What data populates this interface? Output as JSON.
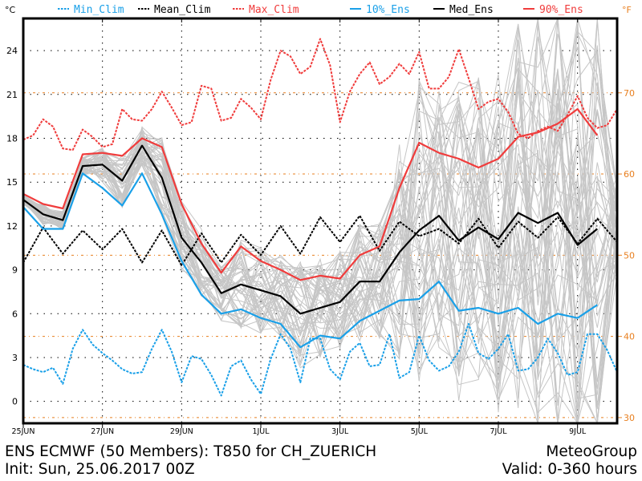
{
  "chart_data": {
    "type": "line",
    "title": "ENS ECMWF (50 Members): T850 for CH_ZUERICH",
    "subtitle": "Init: Sun, 25.06.2017 00Z",
    "credit": "MeteoGroup",
    "valid": "Valid: 0-360 hours",
    "ylabel": "°C",
    "ylabel_right": "°F",
    "xlabel": "",
    "xunit": "hours since init",
    "ylim": [
      -1.5,
      26.2
    ],
    "xlim": [
      0,
      360
    ],
    "grid": true,
    "legend_position": "top",
    "yticks": [
      0,
      3,
      6,
      9,
      12,
      15,
      18,
      21,
      24
    ],
    "yticks_right": [
      30,
      40,
      50,
      60,
      70
    ],
    "xticks": [
      {
        "hour": 0,
        "label": "25JUN"
      },
      {
        "hour": 48,
        "label": "27JUN"
      },
      {
        "hour": 96,
        "label": "29JUN"
      },
      {
        "hour": 144,
        "label": "1JUL"
      },
      {
        "hour": 192,
        "label": "3JUL"
      },
      {
        "hour": 240,
        "label": "5JUL"
      },
      {
        "hour": 288,
        "label": "7JUL"
      },
      {
        "hour": 336,
        "label": "9JUL"
      }
    ],
    "legend": [
      {
        "name": "Min_Clim",
        "color": "#1aa0e8",
        "style": "dashed"
      },
      {
        "name": "Mean_Clim",
        "color": "#000000",
        "style": "dashed"
      },
      {
        "name": "Max_Clim",
        "color": "#f03c3c",
        "style": "dashed"
      },
      {
        "name": "10%_Ens",
        "color": "#1aa0e8",
        "style": "solid"
      },
      {
        "name": "Med_Ens",
        "color": "#000000",
        "style": "solid"
      },
      {
        "name": "90%_Ens",
        "color": "#f03c3c",
        "style": "solid"
      }
    ],
    "series": [
      {
        "name": "Max_Clim",
        "hours": [
          0,
          6,
          12,
          18,
          24,
          30,
          36,
          42,
          48,
          54,
          60,
          66,
          72,
          78,
          84,
          90,
          96,
          102,
          108,
          114,
          120,
          126,
          132,
          138,
          144,
          150,
          156,
          162,
          168,
          174,
          180,
          186,
          192,
          198,
          204,
          210,
          216,
          222,
          228,
          234,
          240,
          246,
          252,
          258,
          264,
          270,
          276,
          282,
          288,
          294,
          300,
          306,
          312,
          318,
          324,
          330,
          336,
          342,
          348,
          354,
          360
        ],
        "values": [
          17.9,
          18.2,
          19.3,
          18.8,
          17.3,
          17.2,
          18.6,
          18.1,
          17.4,
          17.6,
          20.0,
          19.3,
          19.2,
          20.0,
          21.2,
          20.1,
          18.9,
          19.1,
          21.6,
          21.4,
          19.2,
          19.4,
          20.7,
          20.1,
          19.3,
          22.0,
          24.0,
          23.6,
          22.4,
          22.9,
          24.8,
          23.0,
          19.1,
          21.2,
          22.4,
          23.2,
          21.7,
          22.2,
          23.1,
          22.4,
          23.9,
          21.4,
          21.4,
          22.2,
          24.1,
          22.1,
          20.0,
          20.5,
          20.7,
          19.8,
          18.3,
          18.0,
          18.5,
          18.8,
          18.5,
          19.6,
          20.9,
          19.4,
          18.7,
          18.9,
          20.0
        ]
      },
      {
        "name": "Mean_Clim",
        "hours": [
          0,
          12,
          24,
          36,
          48,
          60,
          72,
          84,
          96,
          108,
          120,
          132,
          144,
          156,
          168,
          180,
          192,
          204,
          216,
          228,
          240,
          252,
          264,
          276,
          288,
          300,
          312,
          324,
          336,
          348,
          360
        ],
        "values": [
          9.5,
          11.9,
          10.1,
          11.7,
          10.4,
          11.8,
          9.5,
          11.7,
          9.3,
          11.5,
          9.5,
          11.4,
          10.0,
          12.0,
          10.1,
          12.6,
          10.9,
          12.7,
          10.3,
          12.3,
          11.3,
          11.8,
          10.8,
          12.5,
          10.5,
          12.3,
          11.2,
          12.6,
          10.8,
          12.5,
          10.9
        ]
      },
      {
        "name": "Min_Clim",
        "hours": [
          0,
          6,
          12,
          18,
          24,
          30,
          36,
          42,
          48,
          54,
          60,
          66,
          72,
          78,
          84,
          90,
          96,
          102,
          108,
          114,
          120,
          126,
          132,
          138,
          144,
          150,
          156,
          162,
          168,
          174,
          180,
          186,
          192,
          198,
          204,
          210,
          216,
          222,
          228,
          234,
          240,
          246,
          252,
          258,
          264,
          270,
          276,
          282,
          288,
          294,
          300,
          306,
          312,
          318,
          324,
          330,
          336,
          342,
          348,
          354,
          360
        ],
        "values": [
          2.5,
          2.2,
          2.0,
          2.3,
          1.2,
          3.6,
          4.9,
          3.9,
          3.3,
          2.8,
          2.2,
          1.9,
          2.0,
          3.6,
          4.9,
          3.4,
          1.3,
          3.1,
          2.9,
          1.8,
          0.4,
          2.4,
          2.8,
          1.5,
          0.5,
          2.9,
          4.6,
          3.6,
          1.3,
          4.3,
          4.3,
          2.2,
          1.5,
          3.4,
          4.0,
          2.4,
          2.5,
          4.6,
          1.6,
          2.0,
          4.5,
          2.8,
          2.1,
          2.4,
          3.4,
          5.3,
          3.3,
          2.9,
          3.6,
          4.6,
          2.1,
          2.2,
          3.0,
          4.3,
          3.3,
          1.8,
          2.0,
          4.6,
          4.6,
          3.5,
          2.0
        ]
      },
      {
        "name": "90%_Ens",
        "hours": [
          0,
          12,
          24,
          36,
          48,
          60,
          72,
          84,
          96,
          108,
          120,
          132,
          144,
          156,
          168,
          180,
          192,
          204,
          216,
          228,
          240,
          252,
          264,
          276,
          288,
          300,
          312,
          324,
          336,
          348
        ],
        "values": [
          14.2,
          13.5,
          13.2,
          16.9,
          17.0,
          16.8,
          18.0,
          17.4,
          13.5,
          10.8,
          8.8,
          10.6,
          9.6,
          9.0,
          8.3,
          8.6,
          8.4,
          10.0,
          10.6,
          14.6,
          17.7,
          17.0,
          16.6,
          16.0,
          16.6,
          18.1,
          18.4,
          19.0,
          20.0,
          18.2
        ]
      },
      {
        "name": "Med_Ens",
        "hours": [
          0,
          12,
          24,
          36,
          48,
          60,
          72,
          84,
          96,
          108,
          120,
          132,
          144,
          156,
          168,
          180,
          192,
          204,
          216,
          228,
          240,
          252,
          264,
          276,
          288,
          300,
          312,
          324,
          336,
          348
        ],
        "values": [
          13.8,
          12.8,
          12.4,
          16.1,
          16.2,
          15.1,
          17.5,
          15.3,
          11.2,
          9.5,
          7.4,
          8.0,
          7.6,
          7.2,
          6.0,
          6.4,
          6.8,
          8.2,
          8.2,
          10.2,
          11.7,
          12.7,
          11.0,
          11.9,
          11.1,
          12.9,
          12.2,
          12.9,
          10.7,
          11.8
        ]
      },
      {
        "name": "10%_Ens",
        "hours": [
          0,
          12,
          24,
          36,
          48,
          60,
          72,
          84,
          96,
          108,
          120,
          132,
          144,
          156,
          168,
          180,
          192,
          204,
          216,
          228,
          240,
          252,
          264,
          276,
          288,
          300,
          312,
          324,
          336,
          348
        ],
        "values": [
          13.3,
          11.8,
          11.8,
          15.6,
          14.6,
          13.4,
          15.6,
          12.8,
          9.6,
          7.3,
          6.0,
          6.3,
          5.7,
          5.3,
          3.7,
          4.5,
          4.3,
          5.5,
          6.2,
          6.9,
          7.0,
          8.2,
          6.2,
          6.4,
          6.0,
          6.4,
          5.3,
          6.0,
          5.7,
          6.6
        ]
      }
    ]
  }
}
